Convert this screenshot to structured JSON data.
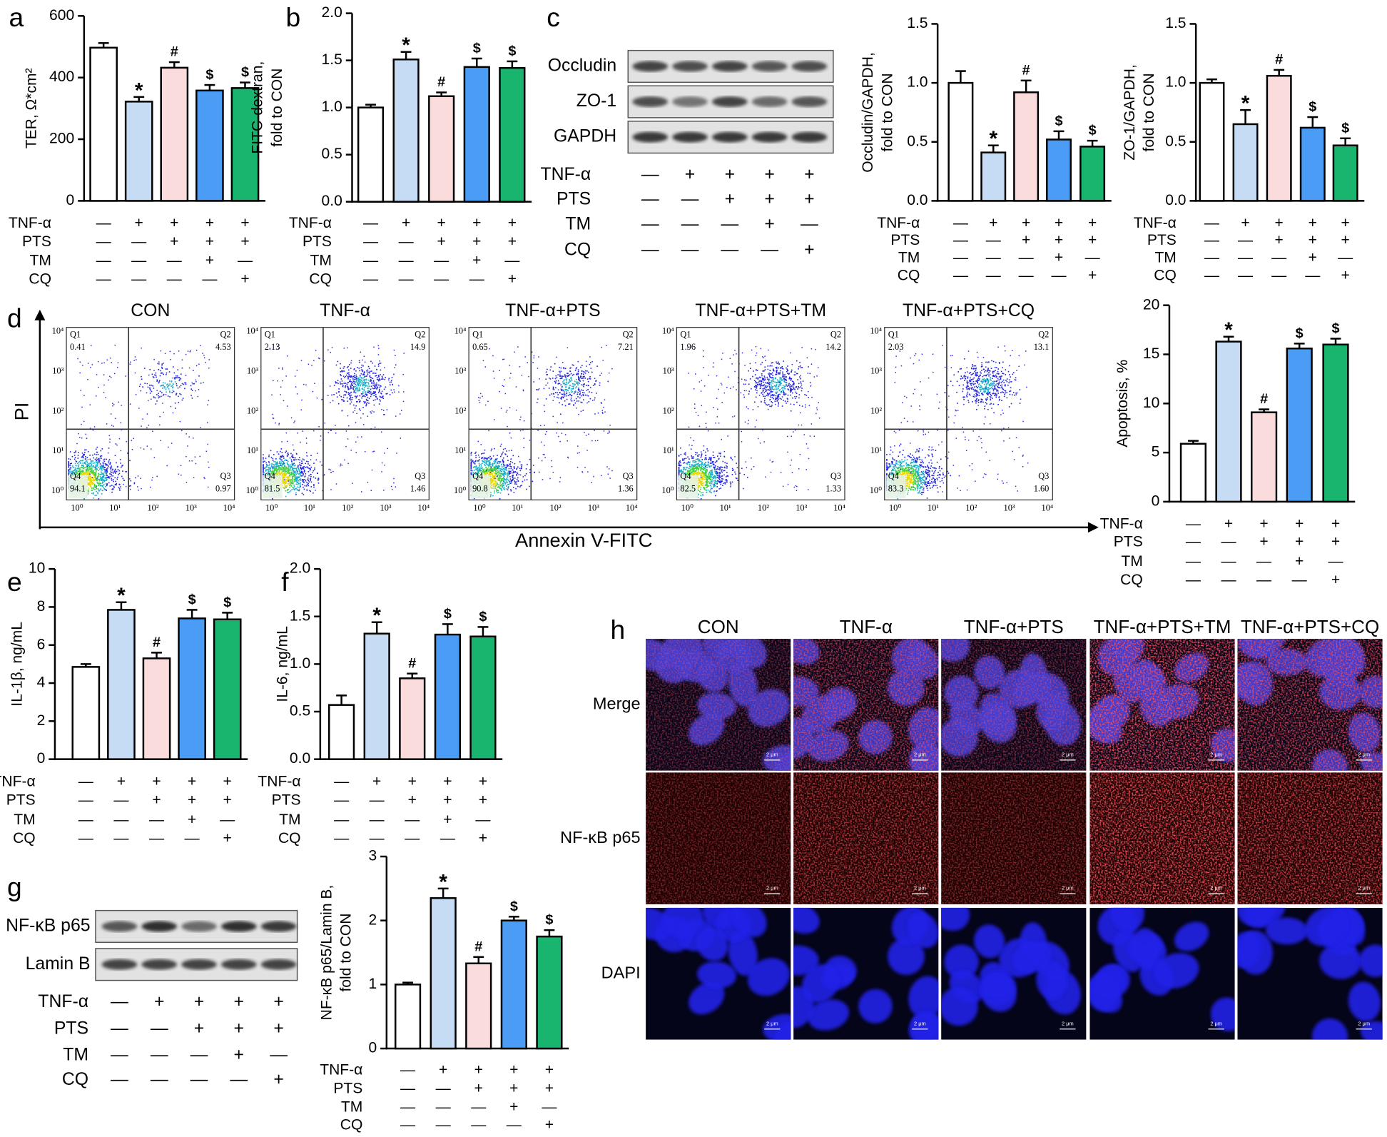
{
  "chart_data": [
    {
      "type": "bar",
      "panel": "a",
      "ylabel": [
        "TER, Ω*cm²"
      ],
      "values": [
        497,
        322,
        432,
        358,
        366
      ],
      "errors": [
        15,
        15,
        18,
        18,
        18
      ],
      "annotations": [
        null,
        "*",
        "#",
        "$",
        "$"
      ],
      "colors": [
        "#ffffff",
        "#c6dcf5",
        "#fbdcdc",
        "#4b9cf5",
        "#19b56f"
      ],
      "ylim": [
        0,
        600
      ],
      "yticks": [
        0,
        200,
        400,
        600
      ],
      "treatments": [
        {
          "name": "TNF-α",
          "signs": [
            "—",
            "+",
            "+",
            "+",
            "+"
          ]
        },
        {
          "name": "PTS",
          "signs": [
            "—",
            "—",
            "+",
            "+",
            "+"
          ]
        },
        {
          "name": "TM",
          "signs": [
            "—",
            "—",
            "—",
            "+",
            "—"
          ]
        },
        {
          "name": "CQ",
          "signs": [
            "—",
            "—",
            "—",
            "—",
            "+"
          ]
        }
      ]
    },
    {
      "type": "bar",
      "panel": "b",
      "ylabel": [
        "FITC-dextran,",
        "fold to CON"
      ],
      "values": [
        1.0,
        1.51,
        1.12,
        1.43,
        1.42
      ],
      "errors": [
        0.03,
        0.08,
        0.04,
        0.09,
        0.07
      ],
      "annotations": [
        null,
        "*",
        "#",
        "$",
        "$"
      ],
      "colors": [
        "#ffffff",
        "#c6dcf5",
        "#fbdcdc",
        "#4b9cf5",
        "#19b56f"
      ],
      "ylim": [
        0,
        2
      ],
      "yticks": [
        {
          "value": 0,
          "label": "0.0"
        },
        0.5,
        {
          "value": 1,
          "label": "1.0"
        },
        1.5,
        {
          "value": 2,
          "label": "2.0"
        }
      ],
      "treatments": [
        {
          "name": "TNF-α",
          "signs": [
            "—",
            "+",
            "+",
            "+",
            "+"
          ]
        },
        {
          "name": "PTS",
          "signs": [
            "—",
            "—",
            "+",
            "+",
            "+"
          ]
        },
        {
          "name": "TM",
          "signs": [
            "—",
            "—",
            "—",
            "+",
            "—"
          ]
        },
        {
          "name": "CQ",
          "signs": [
            "—",
            "—",
            "—",
            "—",
            "+"
          ]
        }
      ]
    },
    {
      "type": "bar",
      "ylabel": [
        "Occludin/GAPDH,",
        "fold to CON"
      ],
      "values": [
        1.0,
        0.41,
        0.92,
        0.52,
        0.46
      ],
      "errors": [
        0.1,
        0.06,
        0.1,
        0.07,
        0.05
      ],
      "annotations": [
        null,
        "*",
        "#",
        "$",
        "$"
      ],
      "colors": [
        "#ffffff",
        "#c6dcf5",
        "#fbdcdc",
        "#4b9cf5",
        "#19b56f"
      ],
      "ylim": [
        0,
        1.5
      ],
      "yticks": [
        {
          "value": 0,
          "label": "0.0"
        },
        0.5,
        {
          "value": 1,
          "label": "1.0"
        },
        1.5
      ],
      "treatments": [
        {
          "name": "TNF-α",
          "signs": [
            "—",
            "+",
            "+",
            "+",
            "+"
          ]
        },
        {
          "name": "PTS",
          "signs": [
            "—",
            "—",
            "+",
            "+",
            "+"
          ]
        },
        {
          "name": "TM",
          "signs": [
            "—",
            "—",
            "—",
            "+",
            "—"
          ]
        },
        {
          "name": "CQ",
          "signs": [
            "—",
            "—",
            "—",
            "—",
            "+"
          ]
        }
      ]
    },
    {
      "type": "bar",
      "ylabel": [
        "ZO-1/GAPDH,",
        "fold to CON"
      ],
      "values": [
        1.0,
        0.65,
        1.06,
        0.62,
        0.47
      ],
      "errors": [
        0.03,
        0.12,
        0.05,
        0.09,
        0.06
      ],
      "annotations": [
        null,
        "*",
        "#",
        "$",
        "$"
      ],
      "colors": [
        "#ffffff",
        "#c6dcf5",
        "#fbdcdc",
        "#4b9cf5",
        "#19b56f"
      ],
      "ylim": [
        0,
        1.5
      ],
      "yticks": [
        {
          "value": 0,
          "label": "0.0"
        },
        0.5,
        {
          "value": 1,
          "label": "1.0"
        },
        1.5
      ],
      "treatments": [
        {
          "name": "TNF-α",
          "signs": [
            "—",
            "+",
            "+",
            "+",
            "+"
          ]
        },
        {
          "name": "PTS",
          "signs": [
            "—",
            "—",
            "+",
            "+",
            "+"
          ]
        },
        {
          "name": "TM",
          "signs": [
            "—",
            "—",
            "—",
            "+",
            "—"
          ]
        },
        {
          "name": "CQ",
          "signs": [
            "—",
            "—",
            "—",
            "—",
            "+"
          ]
        }
      ]
    },
    {
      "type": "bar",
      "ylabel": [
        "Apoptosis, %"
      ],
      "values": [
        5.9,
        16.3,
        9.1,
        15.6,
        16.0
      ],
      "errors": [
        0.3,
        0.5,
        0.3,
        0.5,
        0.6
      ],
      "annotations": [
        null,
        "*",
        "#",
        "$",
        "$"
      ],
      "colors": [
        "#ffffff",
        "#c6dcf5",
        "#fbdcdc",
        "#4b9cf5",
        "#19b56f"
      ],
      "ylim": [
        0,
        20
      ],
      "yticks": [
        0,
        5,
        10,
        15,
        20
      ],
      "treatments": [
        {
          "name": "TNF-α",
          "signs": [
            "—",
            "+",
            "+",
            "+",
            "+"
          ]
        },
        {
          "name": "PTS",
          "signs": [
            "—",
            "—",
            "+",
            "+",
            "+"
          ]
        },
        {
          "name": "TM",
          "signs": [
            "—",
            "—",
            "—",
            "+",
            "—"
          ]
        },
        {
          "name": "CQ",
          "signs": [
            "—",
            "—",
            "—",
            "—",
            "+"
          ]
        }
      ]
    },
    {
      "type": "bar",
      "panel": "e",
      "ylabel": [
        "IL-1β, ng/mL"
      ],
      "values": [
        4.85,
        7.85,
        5.3,
        7.4,
        7.35
      ],
      "errors": [
        0.15,
        0.4,
        0.3,
        0.45,
        0.35
      ],
      "annotations": [
        null,
        "*",
        "#",
        "$",
        "$"
      ],
      "colors": [
        "#ffffff",
        "#c6dcf5",
        "#fbdcdc",
        "#4b9cf5",
        "#19b56f"
      ],
      "ylim": [
        0,
        10
      ],
      "yticks": [
        0,
        2,
        4,
        6,
        8,
        10
      ],
      "treatments": [
        {
          "name": "TNF-α",
          "signs": [
            "—",
            "+",
            "+",
            "+",
            "+"
          ]
        },
        {
          "name": "PTS",
          "signs": [
            "—",
            "—",
            "+",
            "+",
            "+"
          ]
        },
        {
          "name": "TM",
          "signs": [
            "—",
            "—",
            "—",
            "+",
            "—"
          ]
        },
        {
          "name": "CQ",
          "signs": [
            "—",
            "—",
            "—",
            "—",
            "+"
          ]
        }
      ]
    },
    {
      "type": "bar",
      "panel": "f",
      "ylabel": [
        "IL-6, ng/mL"
      ],
      "values": [
        0.57,
        1.32,
        0.85,
        1.31,
        1.29
      ],
      "errors": [
        0.1,
        0.12,
        0.05,
        0.11,
        0.1
      ],
      "annotations": [
        null,
        "*",
        "#",
        "$",
        "$"
      ],
      "colors": [
        "#ffffff",
        "#c6dcf5",
        "#fbdcdc",
        "#4b9cf5",
        "#19b56f"
      ],
      "ylim": [
        0,
        2
      ],
      "yticks": [
        {
          "value": 0,
          "label": "0.0"
        },
        0.5,
        {
          "value": 1,
          "label": "1.0"
        },
        1.5,
        {
          "value": 2,
          "label": "2.0"
        }
      ],
      "treatments": [
        {
          "name": "TNF-α",
          "signs": [
            "—",
            "+",
            "+",
            "+",
            "+"
          ]
        },
        {
          "name": "PTS",
          "signs": [
            "—",
            "—",
            "+",
            "+",
            "+"
          ]
        },
        {
          "name": "TM",
          "signs": [
            "—",
            "—",
            "—",
            "+",
            "—"
          ]
        },
        {
          "name": "CQ",
          "signs": [
            "—",
            "—",
            "—",
            "—",
            "+"
          ]
        }
      ]
    },
    {
      "type": "bar",
      "ylabel": [
        "NF-κB p65/Lamin B,",
        "fold to CON"
      ],
      "values": [
        1.0,
        2.35,
        1.33,
        2.0,
        1.75
      ],
      "errors": [
        0.03,
        0.15,
        0.1,
        0.06,
        0.1
      ],
      "annotations": [
        null,
        "*",
        "#",
        "$",
        "$"
      ],
      "colors": [
        "#ffffff",
        "#c6dcf5",
        "#fbdcdc",
        "#4b9cf5",
        "#19b56f"
      ],
      "ylim": [
        0,
        3
      ],
      "yticks": [
        0,
        1,
        2,
        3
      ],
      "treatments": [
        {
          "name": "TNF-α",
          "signs": [
            "—",
            "+",
            "+",
            "+",
            "+"
          ]
        },
        {
          "name": "PTS",
          "signs": [
            "—",
            "—",
            "+",
            "+",
            "+"
          ]
        },
        {
          "name": "TM",
          "signs": [
            "—",
            "—",
            "—",
            "+",
            "—"
          ]
        },
        {
          "name": "CQ",
          "signs": [
            "—",
            "—",
            "—",
            "—",
            "+"
          ]
        }
      ]
    }
  ],
  "blots": [
    {
      "panel": "c",
      "rows": [
        "Occludin",
        "ZO-1",
        "GAPDH"
      ],
      "treatments": [
        {
          "name": "TNF-α",
          "signs": [
            "—",
            "+",
            "+",
            "+",
            "+"
          ]
        },
        {
          "name": "PTS",
          "signs": [
            "—",
            "—",
            "+",
            "+",
            "+"
          ]
        },
        {
          "name": "TM",
          "signs": [
            "—",
            "—",
            "—",
            "+",
            "—"
          ]
        },
        {
          "name": "CQ",
          "signs": [
            "—",
            "—",
            "—",
            "—",
            "+"
          ]
        }
      ]
    },
    {
      "panel": "g",
      "rows": [
        "NF-κB p65",
        "Lamin B"
      ],
      "treatments": [
        {
          "name": "TNF-α",
          "signs": [
            "—",
            "+",
            "+",
            "+",
            "+"
          ]
        },
        {
          "name": "PTS",
          "signs": [
            "—",
            "—",
            "+",
            "+",
            "+"
          ]
        },
        {
          "name": "TM",
          "signs": [
            "—",
            "—",
            "—",
            "+",
            "—"
          ]
        },
        {
          "name": "CQ",
          "signs": [
            "—",
            "—",
            "—",
            "—",
            "+"
          ]
        }
      ]
    }
  ],
  "flow": {
    "panel": "d",
    "x_label": "Annexin V-FITC",
    "y_label": "PI",
    "ticks": [
      "10⁰",
      "10¹",
      "10²",
      "10³",
      "10⁴"
    ],
    "samples": [
      {
        "title": "CON",
        "quadrants": [
          {
            "name": "Q1",
            "value": "0.41"
          },
          {
            "name": "Q2",
            "value": "4.53"
          },
          {
            "name": "Q3",
            "value": "0.97"
          },
          {
            "name": "Q4",
            "value": "94.1"
          }
        ]
      },
      {
        "title": "TNF-α",
        "quadrants": [
          {
            "name": "Q1",
            "value": "2.13"
          },
          {
            "name": "Q2",
            "value": "14.9"
          },
          {
            "name": "Q3",
            "value": "1.46"
          },
          {
            "name": "Q4",
            "value": "81.5"
          }
        ]
      },
      {
        "title": "TNF-α+PTS",
        "quadrants": [
          {
            "name": "Q1",
            "value": "0.65"
          },
          {
            "name": "Q2",
            "value": "7.21"
          },
          {
            "name": "Q3",
            "value": "1.36"
          },
          {
            "name": "Q4",
            "value": "90.8"
          }
        ]
      },
      {
        "title": "TNF-α+PTS+TM",
        "quadrants": [
          {
            "name": "Q1",
            "value": "1.96"
          },
          {
            "name": "Q2",
            "value": "14.2"
          },
          {
            "name": "Q3",
            "value": "1.33"
          },
          {
            "name": "Q4",
            "value": "82.5"
          }
        ]
      },
      {
        "title": "TNF-α+PTS+CQ",
        "quadrants": [
          {
            "name": "Q1",
            "value": "2.03"
          },
          {
            "name": "Q2",
            "value": "13.1"
          },
          {
            "name": "Q3",
            "value": "1.60"
          },
          {
            "name": "Q4",
            "value": "83.3"
          }
        ]
      }
    ]
  },
  "micrographs": {
    "panel": "h",
    "columns": [
      "CON",
      "TNF-α",
      "TNF-α+PTS",
      "TNF-α+PTS+TM",
      "TNF-α+PTS+CQ"
    ],
    "rows": [
      "Merge",
      "NF-κB p65",
      "DAPI"
    ],
    "scale_bar": "2 μm"
  }
}
